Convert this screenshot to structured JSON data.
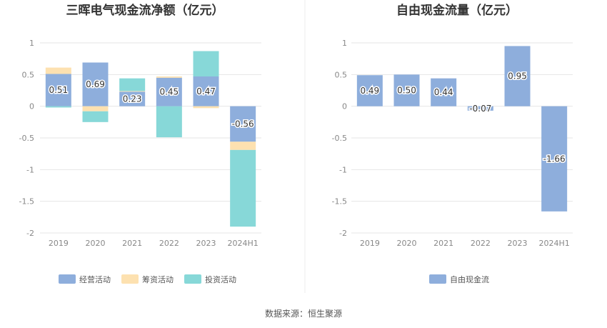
{
  "source_text": "数据来源：恒生聚源",
  "chart_data": [
    {
      "type": "bar",
      "stacked": true,
      "title": "三晖电气现金流净额（亿元）",
      "categories": [
        "2019",
        "2020",
        "2021",
        "2022",
        "2023",
        "2024H1"
      ],
      "ylim": [
        -2,
        1
      ],
      "yticks": [
        "1",
        "0.5",
        "0",
        "-0.5",
        "-1",
        "-1.5",
        "-2"
      ],
      "ytick_values": [
        1,
        0.5,
        0,
        -0.5,
        -1,
        -1.5,
        -2
      ],
      "grid": true,
      "legend_position": "bottom",
      "series": [
        {
          "name": "经营活动",
          "color": "#8eaedc",
          "values": [
            0.51,
            0.69,
            0.23,
            0.45,
            0.47,
            -0.56
          ],
          "labels": [
            "0.51",
            "0.69",
            "0.23",
            "0.45",
            "0.47",
            "-0.56"
          ]
        },
        {
          "name": "筹资活动",
          "color": "#fde1b0",
          "values": [
            0.1,
            -0.08,
            0.01,
            0.02,
            -0.03,
            -0.13
          ]
        },
        {
          "name": "投资活动",
          "color": "#87d8d8",
          "values": [
            -0.02,
            -0.17,
            0.2,
            -0.49,
            0.4,
            -1.21
          ]
        }
      ]
    },
    {
      "type": "bar",
      "title": "自由现金流量（亿元）",
      "categories": [
        "2019",
        "2020",
        "2021",
        "2022",
        "2023",
        "2024H1"
      ],
      "ylim": [
        -2,
        1
      ],
      "yticks": [
        "1",
        "0.5",
        "0",
        "-0.5",
        "-1",
        "-1.5",
        "-2"
      ],
      "ytick_values": [
        1,
        0.5,
        0,
        -0.5,
        -1,
        -1.5,
        -2
      ],
      "grid": true,
      "legend_position": "bottom",
      "series": [
        {
          "name": "自由现金流",
          "color": "#8eaedc",
          "values": [
            0.49,
            0.5,
            0.44,
            -0.07,
            0.95,
            -1.66
          ],
          "labels": [
            "0.49",
            "0.50",
            "0.44",
            "-0.07",
            "0.95",
            "-1.66"
          ]
        }
      ]
    }
  ]
}
